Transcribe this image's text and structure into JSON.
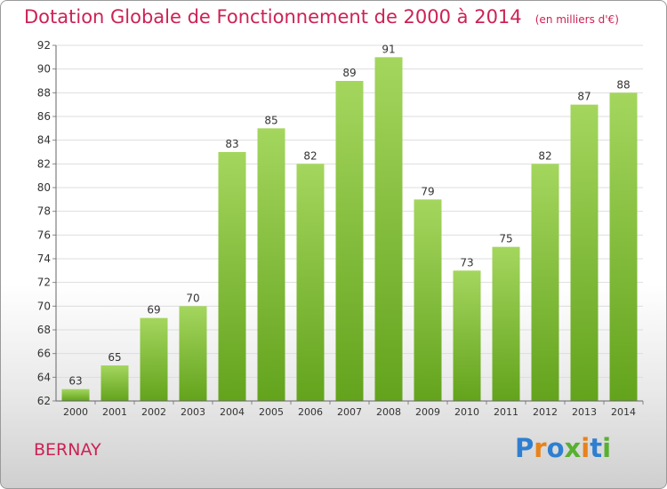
{
  "title": "Dotation Globale de Fonctionnement de 2000 à 2014",
  "subtitle": "(en milliers d'€)",
  "location": "BERNAY",
  "logo": [
    "P",
    "r",
    "o",
    "x",
    "i",
    "t",
    "i"
  ],
  "colors": {
    "title": "#cc2255",
    "bar_light": "#a4d65e",
    "bar_dark": "#63a31c",
    "grid": "#dddddd",
    "axis_text": "#333333"
  },
  "chart_data": {
    "type": "bar",
    "title": "Dotation Globale de Fonctionnement de 2000 à 2014",
    "subtitle": "(en milliers d'€)",
    "categories": [
      "2000",
      "2001",
      "2002",
      "2003",
      "2004",
      "2005",
      "2006",
      "2007",
      "2008",
      "2009",
      "2010",
      "2011",
      "2012",
      "2013",
      "2014"
    ],
    "values": [
      63,
      65,
      69,
      70,
      83,
      85,
      82,
      89,
      91,
      79,
      73,
      75,
      82,
      87,
      88
    ],
    "ylim": [
      62,
      92
    ],
    "yticks": [
      62,
      64,
      66,
      68,
      70,
      72,
      74,
      76,
      78,
      80,
      82,
      84,
      86,
      88,
      90,
      92
    ],
    "grid": true,
    "data_labels": true
  }
}
